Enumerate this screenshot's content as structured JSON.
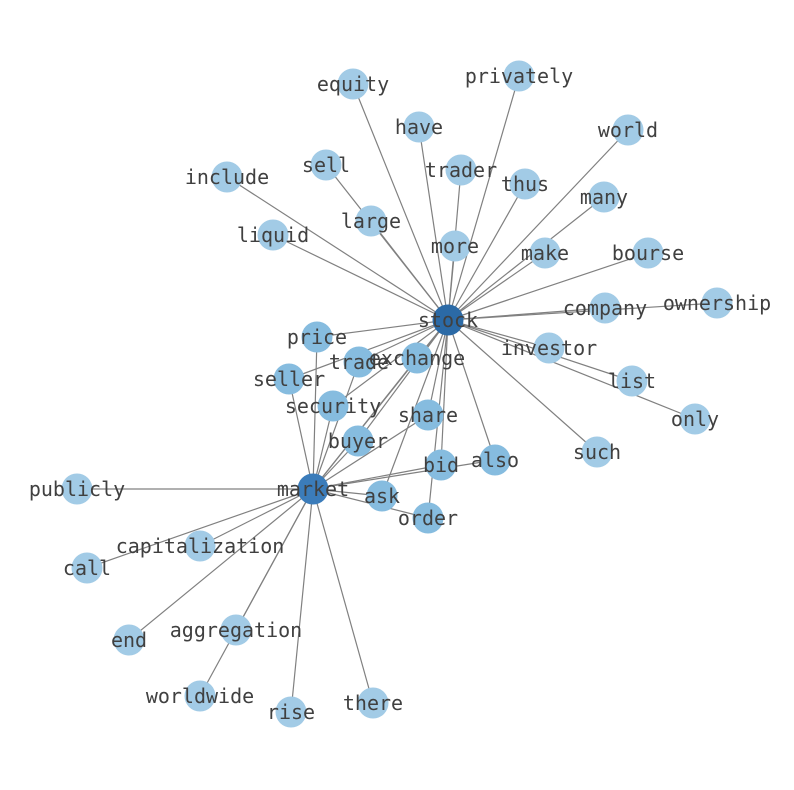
{
  "graph": {
    "colors": {
      "hub_stock": "#2b6aa6",
      "hub_market": "#3b7cba",
      "shared": "#86bcdf",
      "leaf": "#a2cbe6",
      "edge": "#808080",
      "label": "#404040"
    },
    "nodes": [
      {
        "id": "stock",
        "level": "hub_stock"
      },
      {
        "id": "market",
        "level": "hub_market"
      },
      {
        "id": "equity",
        "level": "leaf"
      },
      {
        "id": "privately",
        "level": "leaf"
      },
      {
        "id": "have",
        "level": "leaf"
      },
      {
        "id": "world",
        "level": "leaf"
      },
      {
        "id": "sell",
        "level": "leaf"
      },
      {
        "id": "trader",
        "level": "leaf"
      },
      {
        "id": "thus",
        "level": "leaf"
      },
      {
        "id": "include",
        "level": "leaf"
      },
      {
        "id": "many",
        "level": "leaf"
      },
      {
        "id": "large",
        "level": "leaf"
      },
      {
        "id": "liquid",
        "level": "leaf"
      },
      {
        "id": "more",
        "level": "leaf"
      },
      {
        "id": "make",
        "level": "leaf"
      },
      {
        "id": "bourse",
        "level": "leaf"
      },
      {
        "id": "company",
        "level": "leaf"
      },
      {
        "id": "ownership",
        "level": "leaf"
      },
      {
        "id": "price",
        "level": "shared"
      },
      {
        "id": "trade",
        "level": "shared"
      },
      {
        "id": "exchange",
        "level": "shared"
      },
      {
        "id": "investor",
        "level": "leaf"
      },
      {
        "id": "list",
        "level": "leaf"
      },
      {
        "id": "seller",
        "level": "shared"
      },
      {
        "id": "security",
        "level": "shared"
      },
      {
        "id": "share",
        "level": "shared"
      },
      {
        "id": "only",
        "level": "leaf"
      },
      {
        "id": "buyer",
        "level": "shared"
      },
      {
        "id": "such",
        "level": "leaf"
      },
      {
        "id": "bid",
        "level": "shared"
      },
      {
        "id": "also",
        "level": "shared"
      },
      {
        "id": "publicly",
        "level": "leaf"
      },
      {
        "id": "ask",
        "level": "shared"
      },
      {
        "id": "order",
        "level": "shared"
      },
      {
        "id": "capitalization",
        "level": "leaf"
      },
      {
        "id": "call",
        "level": "leaf"
      },
      {
        "id": "end",
        "level": "leaf"
      },
      {
        "id": "aggregation",
        "level": "leaf"
      },
      {
        "id": "worldwide",
        "level": "leaf"
      },
      {
        "id": "rise",
        "level": "leaf"
      },
      {
        "id": "there",
        "level": "leaf"
      }
    ],
    "edges": [
      [
        "stock",
        "market"
      ],
      [
        "stock",
        "equity"
      ],
      [
        "stock",
        "privately"
      ],
      [
        "stock",
        "have"
      ],
      [
        "stock",
        "world"
      ],
      [
        "stock",
        "sell"
      ],
      [
        "stock",
        "trader"
      ],
      [
        "stock",
        "thus"
      ],
      [
        "stock",
        "include"
      ],
      [
        "stock",
        "many"
      ],
      [
        "stock",
        "large"
      ],
      [
        "stock",
        "liquid"
      ],
      [
        "stock",
        "more"
      ],
      [
        "stock",
        "make"
      ],
      [
        "stock",
        "bourse"
      ],
      [
        "stock",
        "company"
      ],
      [
        "stock",
        "ownership"
      ],
      [
        "stock",
        "investor"
      ],
      [
        "stock",
        "list"
      ],
      [
        "stock",
        "only"
      ],
      [
        "stock",
        "such"
      ],
      [
        "stock",
        "price"
      ],
      [
        "stock",
        "seller"
      ],
      [
        "stock",
        "trade"
      ],
      [
        "stock",
        "exchange"
      ],
      [
        "stock",
        "security"
      ],
      [
        "stock",
        "buyer"
      ],
      [
        "stock",
        "share"
      ],
      [
        "stock",
        "bid"
      ],
      [
        "stock",
        "also"
      ],
      [
        "stock",
        "ask"
      ],
      [
        "stock",
        "order"
      ],
      [
        "market",
        "price"
      ],
      [
        "market",
        "seller"
      ],
      [
        "market",
        "trade"
      ],
      [
        "market",
        "security"
      ],
      [
        "market",
        "buyer"
      ],
      [
        "market",
        "exchange"
      ],
      [
        "market",
        "share"
      ],
      [
        "market",
        "bid"
      ],
      [
        "market",
        "also"
      ],
      [
        "market",
        "ask"
      ],
      [
        "market",
        "order"
      ],
      [
        "market",
        "publicly"
      ],
      [
        "market",
        "capitalization"
      ],
      [
        "market",
        "call"
      ],
      [
        "market",
        "end"
      ],
      [
        "market",
        "aggregation"
      ],
      [
        "market",
        "worldwide"
      ],
      [
        "market",
        "rise"
      ],
      [
        "market",
        "there"
      ]
    ]
  }
}
